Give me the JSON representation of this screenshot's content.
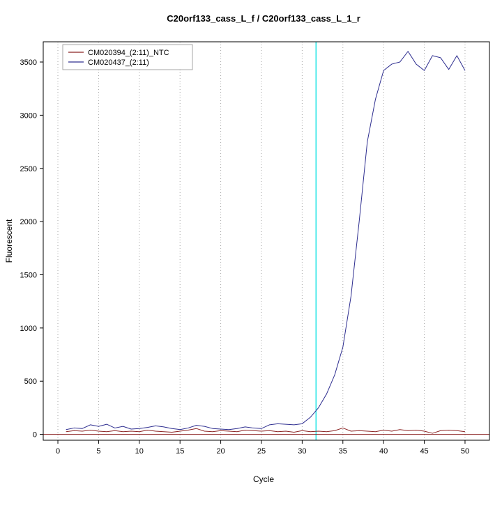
{
  "chart_data": {
    "type": "line",
    "title": "C20orf133_cass_L_f / C20orf133_cass_L_1_r",
    "xlabel": "Cycle",
    "ylabel": "Fluorescent",
    "x_ticks": [
      0,
      5,
      10,
      15,
      20,
      25,
      30,
      35,
      40,
      45,
      50
    ],
    "y_ticks": [
      0,
      500,
      1000,
      1500,
      2000,
      2500,
      3000,
      3500
    ],
    "xlim": [
      -1.8,
      53
    ],
    "ylim": [
      -55,
      3690
    ],
    "grid": {
      "vertical_dotted": true,
      "horizontal": false,
      "color": "#a6a6a6"
    },
    "threshold_line": {
      "x": 31.7,
      "color": "#00e0e0"
    },
    "zero_line": {
      "y": 0,
      "color": "#8b2323"
    },
    "legend": {
      "position": "top-left",
      "entries": [
        "CM020394_(2:11)_NTC",
        "CM020437_(2:11)"
      ]
    },
    "series": [
      {
        "name": "CM020394_(2:11)_NTC",
        "color": "#8b2323",
        "x": [
          1,
          2,
          3,
          4,
          5,
          6,
          7,
          8,
          9,
          10,
          11,
          12,
          13,
          14,
          15,
          16,
          17,
          18,
          19,
          20,
          21,
          22,
          23,
          24,
          25,
          26,
          27,
          28,
          29,
          30,
          31,
          32,
          33,
          34,
          35,
          36,
          37,
          38,
          39,
          40,
          41,
          42,
          43,
          44,
          45,
          46,
          47,
          48,
          49,
          50
        ],
        "values": [
          25,
          35,
          30,
          40,
          30,
          25,
          35,
          25,
          30,
          25,
          40,
          30,
          25,
          20,
          30,
          40,
          55,
          30,
          25,
          35,
          30,
          25,
          40,
          35,
          30,
          35,
          25,
          30,
          20,
          35,
          25,
          30,
          25,
          35,
          60,
          30,
          35,
          30,
          25,
          40,
          30,
          45,
          35,
          40,
          30,
          10,
          35,
          40,
          35,
          25
        ]
      },
      {
        "name": "CM020437_(2:11)",
        "color": "#2d2d8f",
        "x": [
          1,
          2,
          3,
          4,
          5,
          6,
          7,
          8,
          9,
          10,
          11,
          12,
          13,
          14,
          15,
          16,
          17,
          18,
          19,
          20,
          21,
          22,
          23,
          24,
          25,
          26,
          27,
          28,
          29,
          30,
          31,
          32,
          33,
          34,
          35,
          36,
          37,
          38,
          39,
          40,
          41,
          42,
          43,
          44,
          45,
          46,
          47,
          48,
          49,
          50
        ],
        "values": [
          45,
          60,
          55,
          90,
          75,
          95,
          60,
          75,
          50,
          55,
          65,
          80,
          70,
          55,
          45,
          60,
          85,
          75,
          55,
          50,
          45,
          55,
          70,
          60,
          55,
          90,
          100,
          95,
          90,
          100,
          160,
          250,
          380,
          560,
          820,
          1300,
          2000,
          2750,
          3150,
          3420,
          3480,
          3500,
          3600,
          3480,
          3420,
          3560,
          3540,
          3430,
          3560,
          3420
        ]
      }
    ]
  }
}
